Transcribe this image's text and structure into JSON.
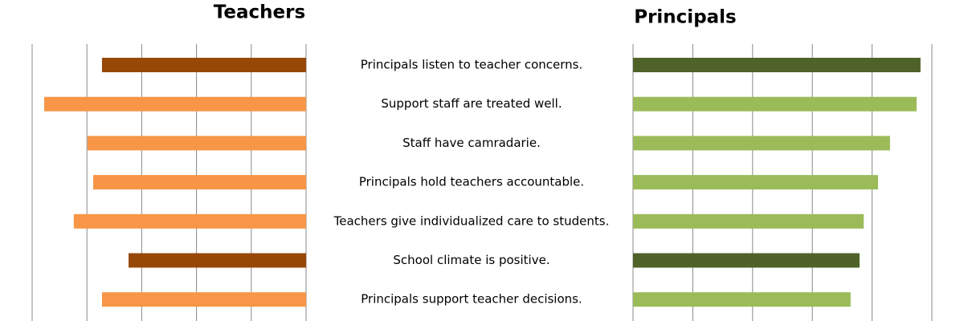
{
  "chart_data": {
    "type": "bar",
    "orientation": "horizontal",
    "categories": [
      "Principals listen to teacher concerns.",
      "Support staff are treated well.",
      "Staff have camradarie.",
      "Principals hold teachers accountable.",
      "Teachers give individualized care to students.",
      "School climate is positive.",
      "Principals support teacher decisions."
    ],
    "series": [
      {
        "name": "Teachers",
        "colors": [
          "#974706",
          "#f79646",
          "#f79646",
          "#f79646",
          "#f79646",
          "#974706",
          "#f79646"
        ],
        "values": [
          74.5,
          95.6,
          79.8,
          77.7,
          84.8,
          64.8,
          74.5
        ]
      },
      {
        "name": "Principals",
        "colors": [
          "#4f6228",
          "#9bbb59",
          "#9bbb59",
          "#9bbb59",
          "#9bbb59",
          "#4f6228",
          "#9bbb59"
        ],
        "values": [
          96.2,
          94.9,
          86,
          82,
          77.2,
          75.8,
          72.8
        ]
      }
    ],
    "xlim": [
      0,
      100
    ],
    "xticks": [
      0,
      20,
      40,
      60,
      80,
      100
    ],
    "grid": true
  }
}
